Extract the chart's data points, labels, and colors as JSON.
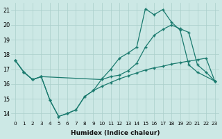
{
  "xlabel": "Humidex (Indice chaleur)",
  "bg_color": "#cce8e5",
  "grid_color": "#aacfcb",
  "line_color": "#1a7a6e",
  "xlim": [
    -0.5,
    23.5
  ],
  "ylim": [
    13.5,
    21.5
  ],
  "yticks": [
    14,
    15,
    16,
    17,
    18,
    19,
    20,
    21
  ],
  "xticks": [
    0,
    1,
    2,
    3,
    4,
    5,
    6,
    7,
    8,
    9,
    10,
    11,
    12,
    13,
    14,
    15,
    16,
    17,
    18,
    19,
    20,
    21,
    22,
    23
  ],
  "line1_x": [
    0,
    1,
    2,
    3,
    4,
    5,
    6,
    7,
    8,
    9,
    10,
    11,
    12,
    13,
    14,
    15,
    16,
    17,
    18,
    19,
    20,
    21,
    23
  ],
  "line1_y": [
    17.6,
    16.8,
    16.3,
    16.5,
    14.9,
    13.8,
    14.0,
    14.25,
    15.15,
    15.55,
    16.35,
    17.0,
    17.75,
    18.1,
    18.5,
    21.1,
    20.7,
    21.05,
    20.2,
    19.65,
    17.3,
    16.8,
    16.2
  ],
  "line2_x": [
    0,
    1,
    2,
    3,
    10,
    11,
    12,
    13,
    14,
    15,
    16,
    17,
    18,
    19,
    20,
    21,
    22,
    23
  ],
  "line2_y": [
    17.6,
    16.8,
    16.3,
    16.5,
    16.3,
    16.5,
    16.6,
    16.9,
    17.4,
    18.5,
    19.3,
    19.7,
    20.0,
    19.75,
    19.5,
    17.3,
    16.8,
    16.2
  ],
  "line3_x": [
    0,
    1,
    2,
    3,
    4,
    5,
    6,
    7,
    8,
    9,
    10,
    11,
    12,
    13,
    14,
    15,
    16,
    17,
    18,
    19,
    20,
    21,
    22,
    23
  ],
  "line3_y": [
    17.6,
    16.8,
    16.3,
    16.5,
    14.9,
    13.8,
    14.0,
    14.25,
    15.15,
    15.55,
    15.85,
    16.1,
    16.35,
    16.55,
    16.75,
    16.95,
    17.1,
    17.2,
    17.35,
    17.45,
    17.55,
    17.65,
    17.75,
    16.2
  ]
}
